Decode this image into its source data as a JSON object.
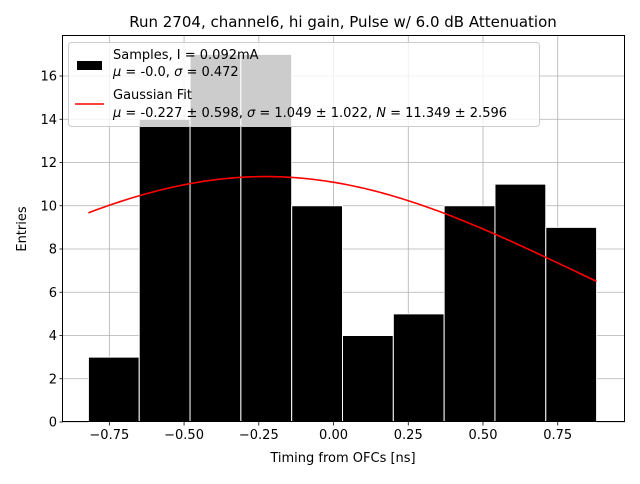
{
  "chart_data": {
    "type": "bar",
    "title": "Run 2704, channel6, hi gain, Pulse w/ 6.0 dB Attenuation",
    "xlabel": "Timing from OFCs [ns]",
    "ylabel": "Entries",
    "xlim": [
      -0.905,
      0.975
    ],
    "ylim": [
      0,
      17.85
    ],
    "grid": true,
    "x_ticks": [
      -0.75,
      -0.5,
      -0.25,
      0.0,
      0.25,
      0.5,
      0.75
    ],
    "x_tick_labels": [
      "−0.75",
      "−0.50",
      "−0.25",
      "0.00",
      "0.25",
      "0.50",
      "0.75"
    ],
    "y_ticks": [
      0,
      2,
      4,
      6,
      8,
      10,
      12,
      14,
      16
    ],
    "y_tick_labels": [
      "0",
      "2",
      "4",
      "6",
      "8",
      "10",
      "12",
      "14",
      "16"
    ],
    "histogram": {
      "name": "Samples",
      "color": "#000000",
      "bin_edges": [
        -0.82,
        -0.65,
        -0.48,
        -0.31,
        -0.14,
        0.03,
        0.2,
        0.37,
        0.54,
        0.71,
        0.88
      ],
      "counts": [
        3,
        14,
        17,
        17,
        10,
        4,
        5,
        10,
        11,
        9
      ]
    },
    "fit": {
      "name": "Gaussian Fit",
      "color": "#ff0000",
      "mu": -0.227,
      "sigma": 1.049,
      "N": 11.349,
      "x_range": [
        -0.82,
        0.88
      ]
    },
    "legend": {
      "placement": "top-left",
      "entries": [
        {
          "kind": "patch",
          "color": "#000000",
          "line1": "Samples, I = 0.092mA",
          "line2_mu": "μ",
          "line2_rest": " = -0.0, ",
          "line2_sigma": "σ",
          "line2_rest2": " = 0.472"
        },
        {
          "kind": "line",
          "color": "#ff0000",
          "line1": "Gaussian Fit",
          "line2_mu": "μ",
          "line2_a": " = -0.227 ± 0.598, ",
          "line2_sigma": "σ",
          "line2_b": " = 1.049 ± 1.022, ",
          "line2_N": "N",
          "line2_c": " = 11.349 ± 2.596"
        }
      ]
    }
  }
}
